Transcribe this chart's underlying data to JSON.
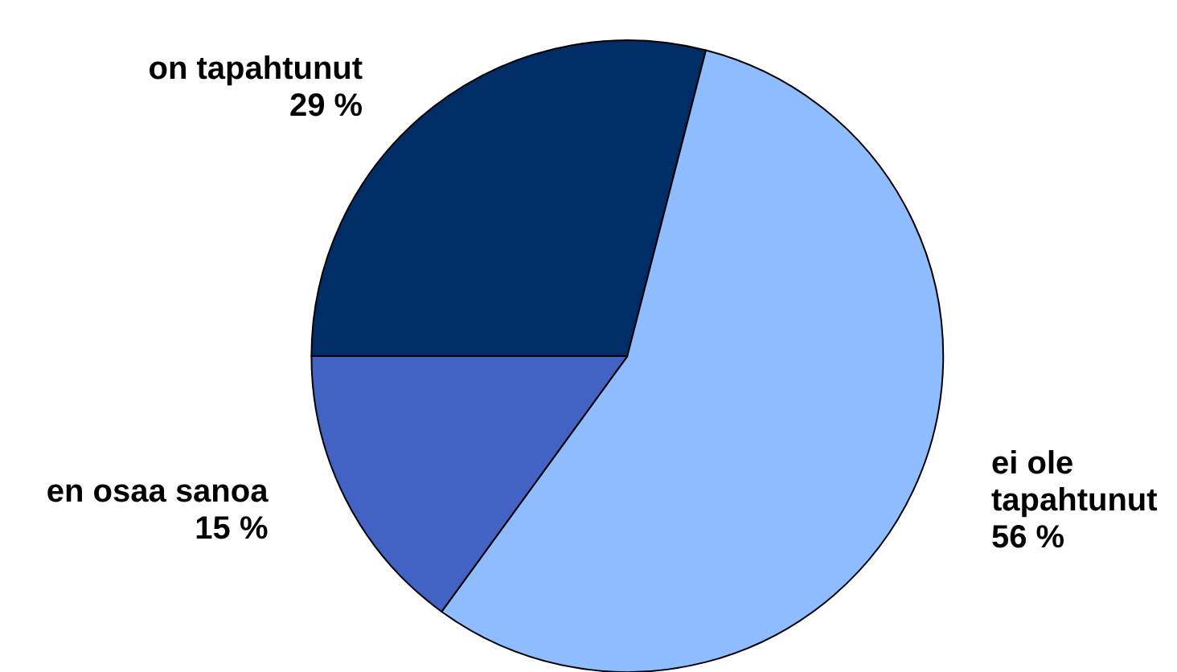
{
  "chart_data": {
    "type": "pie",
    "categories": [
      "on tapahtunut",
      "ei ole tapahtunut",
      "en osaa sanoa"
    ],
    "values": [
      29,
      56,
      15
    ],
    "colors": [
      "#002d66",
      "#8fbcff",
      "#4263c4"
    ],
    "value_labels": [
      "29 %",
      "56 %",
      "15 %"
    ],
    "legend": false
  }
}
